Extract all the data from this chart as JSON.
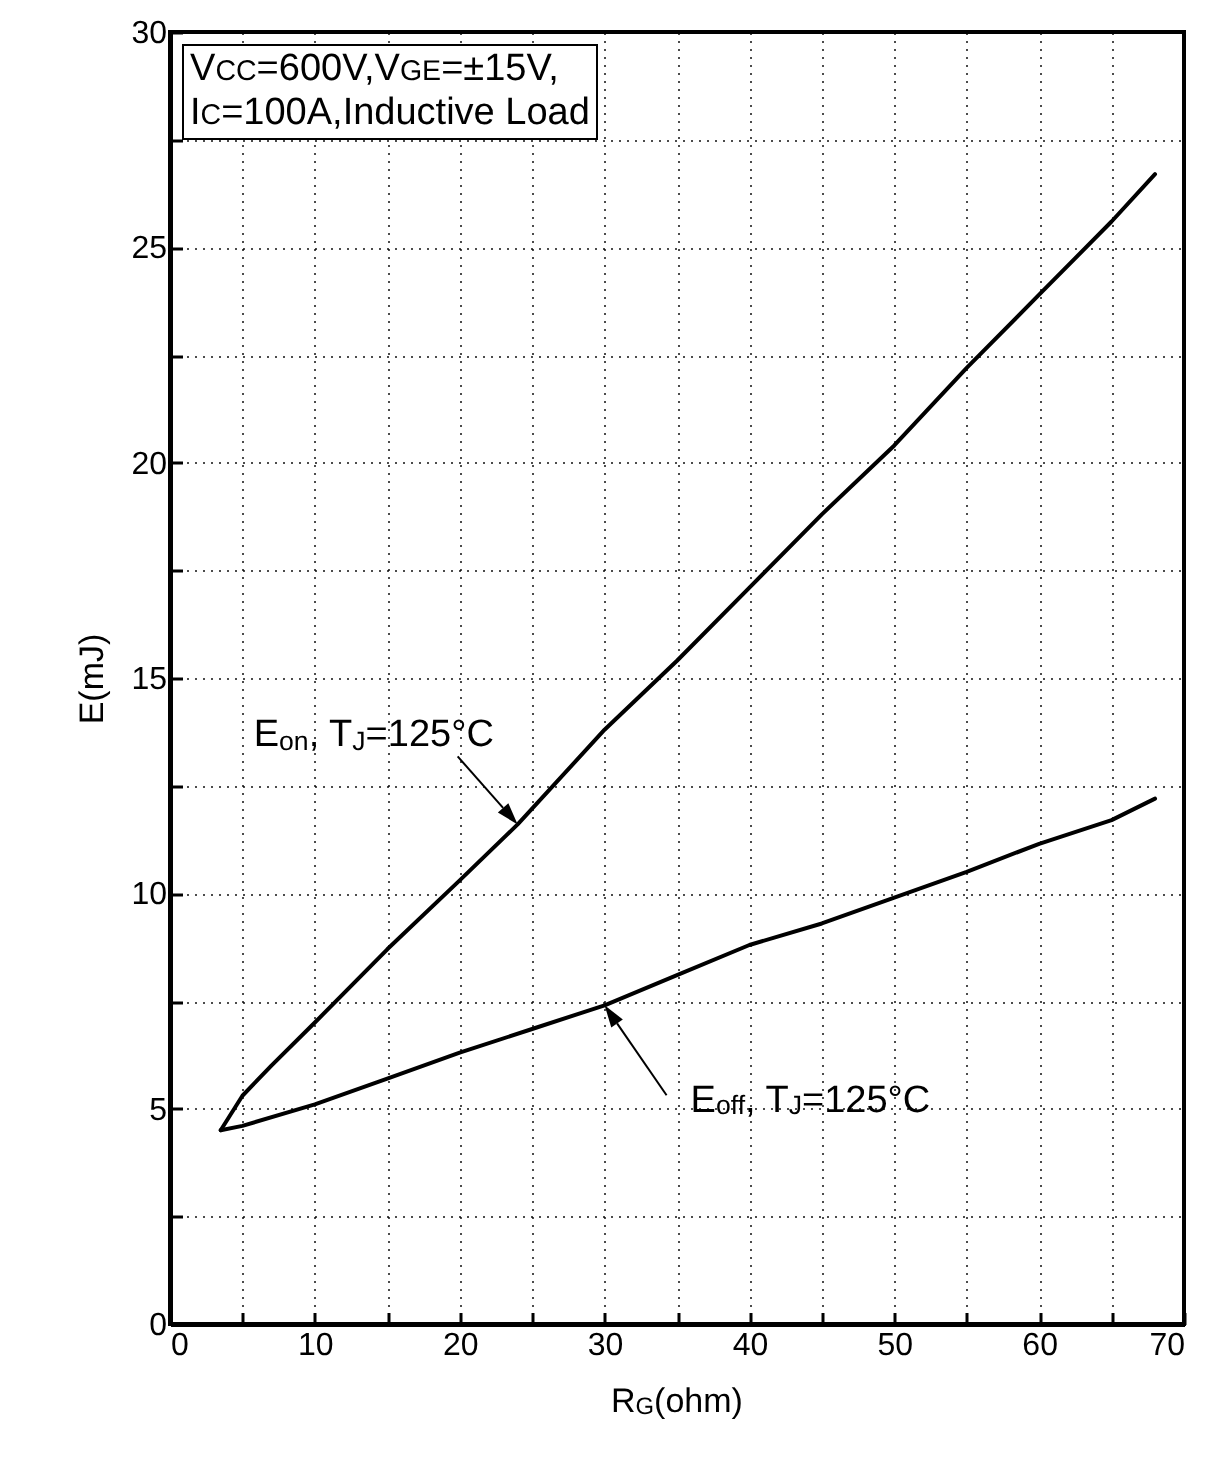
{
  "chart_data": {
    "type": "line",
    "xlabel": "R$_{G}$(ohm)",
    "ylabel": "E(mJ)",
    "xlim": [
      0,
      70
    ],
    "ylim": [
      0,
      30
    ],
    "xticks": [
      0,
      {
        "value": 5,
        "label": null
      },
      10,
      {
        "value": 15,
        "label": null
      },
      20,
      {
        "value": 25,
        "label": null
      },
      30,
      {
        "value": 35,
        "label": null
      },
      40,
      {
        "value": 45,
        "label": null
      },
      50,
      {
        "value": 55,
        "label": null
      },
      60,
      {
        "value": 65,
        "label": null
      },
      70
    ],
    "yticks": [
      0,
      {
        "value": 2.5,
        "label": null
      },
      5,
      {
        "value": 7.5,
        "label": null
      },
      10,
      {
        "value": 12.5,
        "label": null
      },
      15,
      {
        "value": 17.5,
        "label": null
      },
      20,
      {
        "value": 22.5,
        "label": null
      },
      25,
      {
        "value": 27.5,
        "label": null
      },
      30
    ],
    "grid": true,
    "line_style": "solid",
    "marker": "none",
    "series": [
      {
        "color": "#000000",
        "x": [
          3.5,
          5,
          7,
          10,
          15,
          20,
          24,
          30,
          35,
          40,
          45,
          50,
          55,
          60,
          65,
          68
        ],
        "values": [
          4.5,
          5.3,
          6.0,
          7.0,
          8.7,
          10.3,
          11.6,
          13.8,
          15.4,
          17.1,
          18.8,
          20.4,
          22.2,
          23.9,
          25.6,
          26.7
        ]
      },
      {
        "color": "#000000",
        "x": [
          3.5,
          5,
          10,
          15,
          20,
          25,
          30,
          35,
          40,
          45,
          50,
          55,
          60,
          65,
          68
        ],
        "values": [
          4.5,
          4.6,
          5.1,
          5.7,
          6.3,
          6.85,
          7.4,
          8.1,
          8.8,
          9.3,
          9.9,
          10.5,
          11.15,
          11.7,
          12.2
        ]
      }
    ],
    "annotations": [
      "V$_{CC}$=600V,V$_{GE}$=±15V,",
      "I$_{C}$=100A,Inductive Load",
      {
        "text": "E$_{on}$, T$_{J}$=125°C",
        "x": 24,
        "y": 11.6
      },
      {
        "text": "E$_{off}$, T$_{J}$=125°C",
        "x": 30,
        "y": 7.4
      }
    ]
  }
}
